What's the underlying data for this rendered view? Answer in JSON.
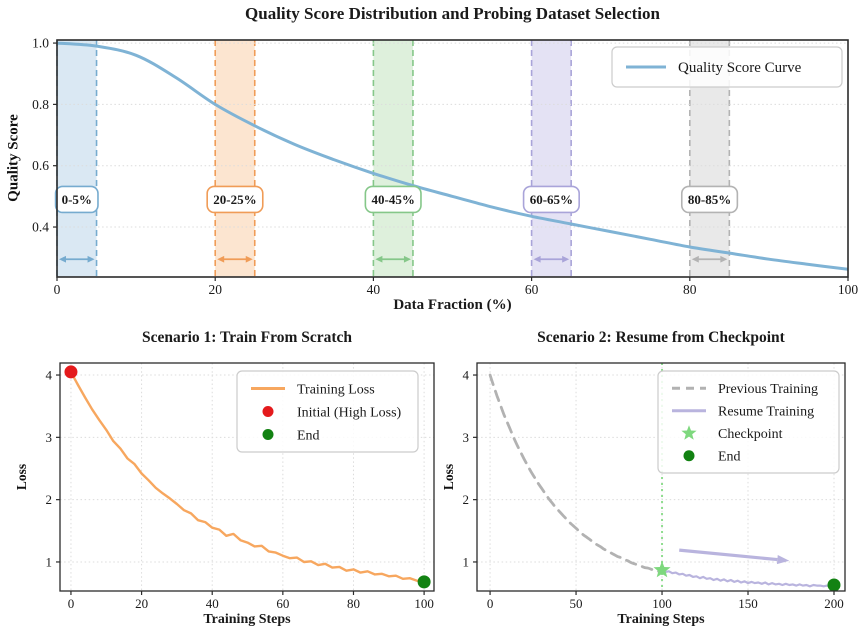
{
  "figure_kind": "matplotlib-style static figure, three subplots",
  "chart_data": [
    {
      "id": "quality",
      "type": "line",
      "title": "Quality Score Distribution and Probing Dataset Selection",
      "xlabel": "Data Fraction (%)",
      "ylabel": "Quality Score",
      "xlim": [
        0,
        100
      ],
      "ylim": [
        0.237,
        1.01
      ],
      "xticks": [
        0,
        20,
        40,
        60,
        80,
        100
      ],
      "xtick_labels": [
        "0",
        "20",
        "40",
        "60",
        "80",
        "100"
      ],
      "yticks": [
        1.0,
        0.8,
        0.6,
        0.4
      ],
      "ytick_labels": [
        "1.0",
        "0.8",
        "0.6",
        "0.4"
      ],
      "grid": "y",
      "legend_position": "upper right",
      "legend": [
        {
          "label": "Quality Score Curve",
          "swatch": "line",
          "color": "#7fb3d5"
        }
      ],
      "series": [
        {
          "name": "Quality Score Curve",
          "color": "#7fb3d5",
          "width": 3,
          "smooth": true,
          "x": [
            0,
            5,
            10,
            15,
            20,
            25,
            30,
            35,
            40,
            45,
            50,
            55,
            60,
            65,
            70,
            75,
            80,
            85,
            90,
            95,
            100
          ],
          "y": [
            1.0,
            0.99,
            0.96,
            0.888,
            0.8,
            0.73,
            0.67,
            0.62,
            0.575,
            0.535,
            0.5,
            0.465,
            0.435,
            0.41,
            0.385,
            0.36,
            0.335,
            0.315,
            0.295,
            0.278,
            0.262
          ]
        }
      ],
      "bands": [
        {
          "label": "0-5%",
          "start": 0,
          "end": 5,
          "fill": "#dae8f3",
          "edge": "#76abcf",
          "text": "#8fb9d6"
        },
        {
          "label": "20-25%",
          "start": 20,
          "end": 25,
          "fill": "#fce5d0",
          "edge": "#f09c57",
          "text": "#f09c57"
        },
        {
          "label": "40-45%",
          "start": 40,
          "end": 45,
          "fill": "#def0dc",
          "edge": "#85c789",
          "text": "#8cc990"
        },
        {
          "label": "60-65%",
          "start": 60,
          "end": 65,
          "fill": "#e4e2f4",
          "edge": "#a9a4d9",
          "text": "#b0abd9"
        },
        {
          "label": "80-85%",
          "start": 80,
          "end": 85,
          "fill": "#e9e9e9",
          "edge": "#b3b3b3",
          "text": "#b3b3b3"
        }
      ],
      "band_label_y": 0.49,
      "band_arrow_y": 0.295
    },
    {
      "id": "scenario1",
      "type": "line",
      "title": "Scenario 1: Train From Scratch",
      "xlabel": "Training Steps",
      "ylabel": "Loss",
      "xlim": [
        -3.1,
        102.8
      ],
      "ylim": [
        0.534,
        4.193
      ],
      "xticks": [
        0,
        20,
        40,
        60,
        80,
        100
      ],
      "xtick_labels": [
        "0",
        "20",
        "40",
        "60",
        "80",
        "100"
      ],
      "yticks": [
        1,
        2,
        3,
        4
      ],
      "ytick_labels": [
        "1",
        "2",
        "3",
        "4"
      ],
      "grid": "xy",
      "legend_position": "upper right",
      "legend": [
        {
          "label": "Training Loss",
          "swatch": "line",
          "color": "#f7a75f"
        },
        {
          "label": "Initial (High Loss)",
          "swatch": "dot",
          "color": "#e41a1c"
        },
        {
          "label": "End",
          "swatch": "dot",
          "color": "#128212"
        }
      ],
      "series": [
        {
          "name": "Training Loss",
          "color": "#f7a75f",
          "width": 2.4,
          "smooth": false,
          "x": [
            0,
            2,
            4,
            6,
            8,
            10,
            12,
            14,
            16,
            18,
            20,
            22,
            24,
            26,
            28,
            30,
            32,
            34,
            36,
            38,
            40,
            42,
            44,
            46,
            48,
            50,
            52,
            54,
            56,
            58,
            60,
            62,
            64,
            66,
            68,
            70,
            72,
            74,
            76,
            78,
            80,
            82,
            84,
            86,
            88,
            90,
            92,
            94,
            96,
            98,
            100
          ],
          "y": [
            4.05,
            3.84,
            3.64,
            3.45,
            3.28,
            3.12,
            2.94,
            2.82,
            2.66,
            2.57,
            2.42,
            2.31,
            2.19,
            2.1,
            2.02,
            1.93,
            1.83,
            1.78,
            1.67,
            1.64,
            1.55,
            1.52,
            1.42,
            1.45,
            1.35,
            1.31,
            1.25,
            1.26,
            1.17,
            1.15,
            1.1,
            1.06,
            1.07,
            1.0,
            1.01,
            0.95,
            0.97,
            0.91,
            0.92,
            0.86,
            0.88,
            0.83,
            0.85,
            0.8,
            0.81,
            0.77,
            0.78,
            0.73,
            0.74,
            0.7,
            0.68
          ]
        }
      ],
      "markers": [
        {
          "label": "Initial (High Loss)",
          "shape": "dot",
          "color": "#e41a1c",
          "x": 0,
          "y": 4.05
        },
        {
          "label": "End",
          "shape": "dot",
          "color": "#128212",
          "x": 100,
          "y": 0.68
        }
      ]
    },
    {
      "id": "scenario2",
      "type": "line",
      "title": "Scenario 2: Resume from Checkpoint",
      "xlabel": "Training Steps",
      "ylabel": "Loss",
      "xlim": [
        -7.6,
        206.4
      ],
      "ylim": [
        0.534,
        4.193
      ],
      "xticks": [
        0,
        50,
        100,
        150,
        200
      ],
      "xtick_labels": [
        "0",
        "50",
        "100",
        "150",
        "200"
      ],
      "yticks": [
        1,
        2,
        3,
        4
      ],
      "ytick_labels": [
        "1",
        "2",
        "3",
        "4"
      ],
      "grid": "xy",
      "legend_position": "upper right",
      "legend": [
        {
          "label": "Previous Training",
          "swatch": "dash",
          "color": "#b2b2b2"
        },
        {
          "label": "Resume Training",
          "swatch": "line",
          "color": "#b9b4de"
        },
        {
          "label": "Checkpoint",
          "swatch": "star",
          "color": "#7ed87e"
        },
        {
          "label": "End",
          "swatch": "dot",
          "color": "#128212"
        }
      ],
      "series": [
        {
          "name": "Previous Training",
          "color": "#b2b2b2",
          "width": 2.8,
          "dash": "10,7",
          "smooth": true,
          "x": [
            0,
            2,
            4,
            6,
            8,
            10,
            12,
            14,
            16,
            18,
            20,
            22,
            24,
            26,
            28,
            30,
            32,
            34,
            36,
            38,
            40,
            42,
            44,
            46,
            48,
            50,
            52,
            54,
            56,
            58,
            60,
            62,
            64,
            66,
            68,
            70,
            72,
            74,
            76,
            78,
            80,
            82,
            84,
            86,
            88,
            90,
            92,
            94,
            96,
            98,
            100
          ],
          "y": [
            4.0,
            3.83,
            3.67,
            3.52,
            3.37,
            3.24,
            3.11,
            2.98,
            2.86,
            2.75,
            2.64,
            2.54,
            2.44,
            2.35,
            2.26,
            2.18,
            2.1,
            2.02,
            1.95,
            1.88,
            1.82,
            1.76,
            1.7,
            1.64,
            1.59,
            1.54,
            1.49,
            1.44,
            1.4,
            1.36,
            1.32,
            1.28,
            1.25,
            1.21,
            1.18,
            1.15,
            1.12,
            1.09,
            1.07,
            1.04,
            1.02,
            0.99,
            0.97,
            0.95,
            0.93,
            0.91,
            0.9,
            0.88,
            0.86,
            0.85,
            0.83
          ]
        },
        {
          "name": "Resume Training",
          "color": "#b9b4de",
          "width": 2.2,
          "smooth": false,
          "x": [
            100,
            102,
            104,
            106,
            108,
            110,
            112,
            114,
            116,
            118,
            120,
            122,
            124,
            126,
            128,
            130,
            132,
            134,
            136,
            138,
            140,
            142,
            144,
            146,
            148,
            150,
            152,
            154,
            156,
            158,
            160,
            162,
            164,
            166,
            168,
            170,
            172,
            174,
            176,
            178,
            180,
            182,
            184,
            186,
            188,
            190,
            192,
            194,
            196,
            198,
            200
          ],
          "y": [
            0.87,
            0.84,
            0.85,
            0.82,
            0.83,
            0.8,
            0.81,
            0.78,
            0.79,
            0.76,
            0.77,
            0.74,
            0.76,
            0.73,
            0.74,
            0.71,
            0.73,
            0.7,
            0.72,
            0.69,
            0.71,
            0.68,
            0.7,
            0.67,
            0.69,
            0.66,
            0.68,
            0.66,
            0.67,
            0.65,
            0.67,
            0.64,
            0.66,
            0.64,
            0.65,
            0.63,
            0.65,
            0.63,
            0.64,
            0.62,
            0.64,
            0.62,
            0.63,
            0.61,
            0.63,
            0.62,
            0.62,
            0.61,
            0.62,
            0.61,
            0.63
          ]
        }
      ],
      "markers": [
        {
          "label": "Checkpoint",
          "shape": "star",
          "color": "#7ed87e",
          "x": 100,
          "y": 0.87
        },
        {
          "label": "End",
          "shape": "dot",
          "color": "#128212",
          "x": 200,
          "y": 0.63
        }
      ],
      "vline": {
        "x": 100,
        "color": "#90dd90",
        "style": "dotted"
      },
      "arrow": {
        "x1": 110,
        "y1": 1.19,
        "x2": 174,
        "y2": 1.02,
        "color": "#b9b4de"
      }
    }
  ],
  "style_colors": {
    "frame": "#2b2b2b",
    "grid": "#dcdcdc",
    "legend_border": "#cccccc",
    "tick_text": "#1a1a1a"
  }
}
